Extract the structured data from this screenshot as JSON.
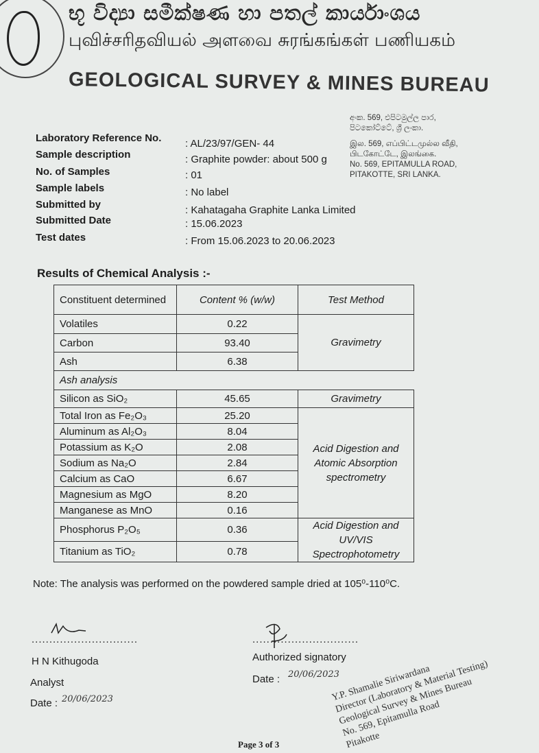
{
  "letterhead": {
    "sinhala_name": "භූ විද්‍යා සමීක්ෂණ හා පතල් කාර්යාංශය",
    "tamil_name": "புவிச்சரிதவியல் அளவை சுரங்கங்கள் பணியகம்",
    "english_name": "GEOLOGICAL SURVEY & MINES  BUREAU",
    "logo_text": "SURVEY & MINES BUREAU",
    "address_sinhala_1": "අංක. 569, එපිටමුල්ල පාර,",
    "address_sinhala_2": "පිටකෝට්ටේ, ශ්‍රී ලංකා.",
    "address_tamil_1": "இல. 569, எப்பிட்டமுல்ல வீதி,",
    "address_tamil_2": "பிடகோட்டே, இலங்கை.",
    "address_english_1": "No. 569, EPITAMULLA ROAD,",
    "address_english_2": "PITAKOTTE, SRI LANKA."
  },
  "sample_info": [
    {
      "label": "Laboratory Reference No.",
      "value": ": AL/23/97/GEN- 44"
    },
    {
      "label": "Sample description",
      "value": ": Graphite powder: about 500 g"
    },
    {
      "label": "No. of Samples",
      "value": ": 01"
    },
    {
      "label": "Sample labels",
      "value": ": No label"
    },
    {
      "label": "Submitted by",
      "value": ": Kahatagaha Graphite Lanka Limited"
    },
    {
      "label": "Submitted Date",
      "value": ": 15.06.2023"
    },
    {
      "label": "Test dates",
      "value": ": From 15.06.2023 to 20.06.2023"
    }
  ],
  "results": {
    "title": "Results of Chemical Analysis :-",
    "headers": [
      "Constituent determined",
      "Content % (w/w)",
      "Test Method"
    ],
    "rows": [
      {
        "constituent": "Volatiles",
        "content": "0.22"
      },
      {
        "constituent": "Carbon",
        "content": "93.40"
      },
      {
        "constituent": "Ash",
        "content": "6.38"
      },
      {
        "constituent": "Silicon as SiO₂",
        "content": "45.65"
      },
      {
        "constituent": "Total Iron as Fe₂O₃",
        "content": "25.20"
      },
      {
        "constituent": "Aluminum as Al₂O₃",
        "content": "8.04"
      },
      {
        "constituent": "Potassium as K₂O",
        "content": "2.08"
      },
      {
        "constituent": "Sodium as Na₂O",
        "content": "2.84"
      },
      {
        "constituent": "Calcium as CaO",
        "content": "6.67"
      },
      {
        "constituent": "Magnesium as MgO",
        "content": "8.20"
      },
      {
        "constituent": "Manganese as MnO",
        "content": "0.16"
      },
      {
        "constituent": "Phosphorus P₂O₅",
        "content": "0.36"
      },
      {
        "constituent": "Titanium as TiO₂",
        "content": "0.78"
      }
    ],
    "section_ash": "Ash analysis",
    "methods": [
      "Gravimetry",
      "Gravimetry",
      "Acid Digestion and Atomic Absorption spectrometry",
      "Acid Digestion and UV/VIS Spectrophotometry"
    ]
  },
  "note": "Note: The analysis was performed on the powdered sample dried at 105⁰-110⁰C.",
  "signatures": {
    "analyst_name": "H N Kithugoda",
    "analyst_role": "Analyst",
    "analyst_date_label": "Date :",
    "analyst_date": "20/06/2023",
    "authorized_label": "Authorized signatory",
    "authorized_date_label": "Date :",
    "authorized_date": "20/06/2023",
    "dots": ".............................."
  },
  "stamp": {
    "line1": "Y.P. Shamalie Siriwardana",
    "line2": "Director (Laboratory & Material Testing)",
    "line3": "Geological Survey & Mines Bureau",
    "line4": "No. 569, Epitamulla Road",
    "line5": "Pitakotte"
  },
  "footer": {
    "page": "Page 3 of 3"
  }
}
